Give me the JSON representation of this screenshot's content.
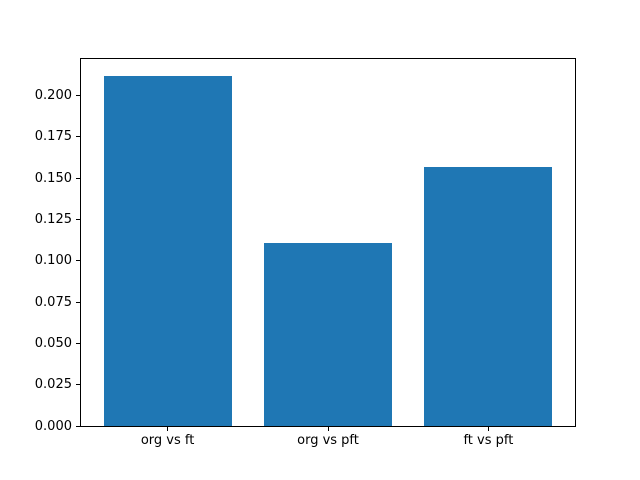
{
  "chart_data": {
    "type": "bar",
    "title": "",
    "xlabel": "",
    "ylabel": "",
    "categories": [
      "org vs ft",
      "org vs pft",
      "ft vs pft"
    ],
    "values": [
      0.212,
      0.111,
      0.157
    ],
    "ylim": [
      0,
      0.222
    ],
    "yticks": [
      0.0,
      0.025,
      0.05,
      0.075,
      0.1,
      0.125,
      0.15,
      0.175,
      0.2
    ],
    "ytick_labels": [
      "0.000",
      "0.025",
      "0.050",
      "0.075",
      "0.100",
      "0.125",
      "0.150",
      "0.175",
      "0.200"
    ],
    "bar_color": "#1f77b4",
    "background_color": "#ffffff",
    "spine_color": "#000000",
    "grid": false,
    "legend": null
  }
}
